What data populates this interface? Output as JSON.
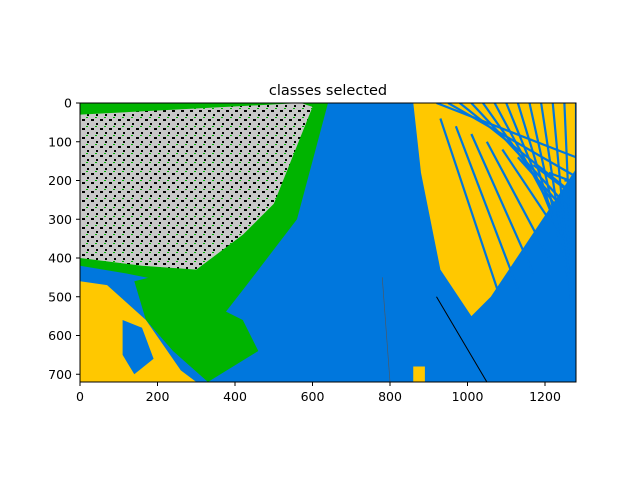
{
  "chart_data": {
    "type": "heatmap",
    "title": "classes selected",
    "xlabel": "",
    "ylabel": "",
    "xlim": [
      0,
      1280
    ],
    "ylim": [
      720,
      0
    ],
    "x_ticks": [
      0,
      200,
      400,
      600,
      800,
      1000,
      1200
    ],
    "y_ticks": [
      0,
      100,
      200,
      300,
      400,
      500,
      600,
      700
    ],
    "grid": false,
    "legend": "none",
    "classes": [
      {
        "id": "blue-class",
        "color": "#0077dd"
      },
      {
        "id": "yellow-class",
        "color": "#ffc800"
      },
      {
        "id": "green-class",
        "color": "#00b400"
      },
      {
        "id": "gray-class",
        "color": "#c8c8c8"
      },
      {
        "id": "black-class",
        "color": "#000000"
      }
    ]
  }
}
